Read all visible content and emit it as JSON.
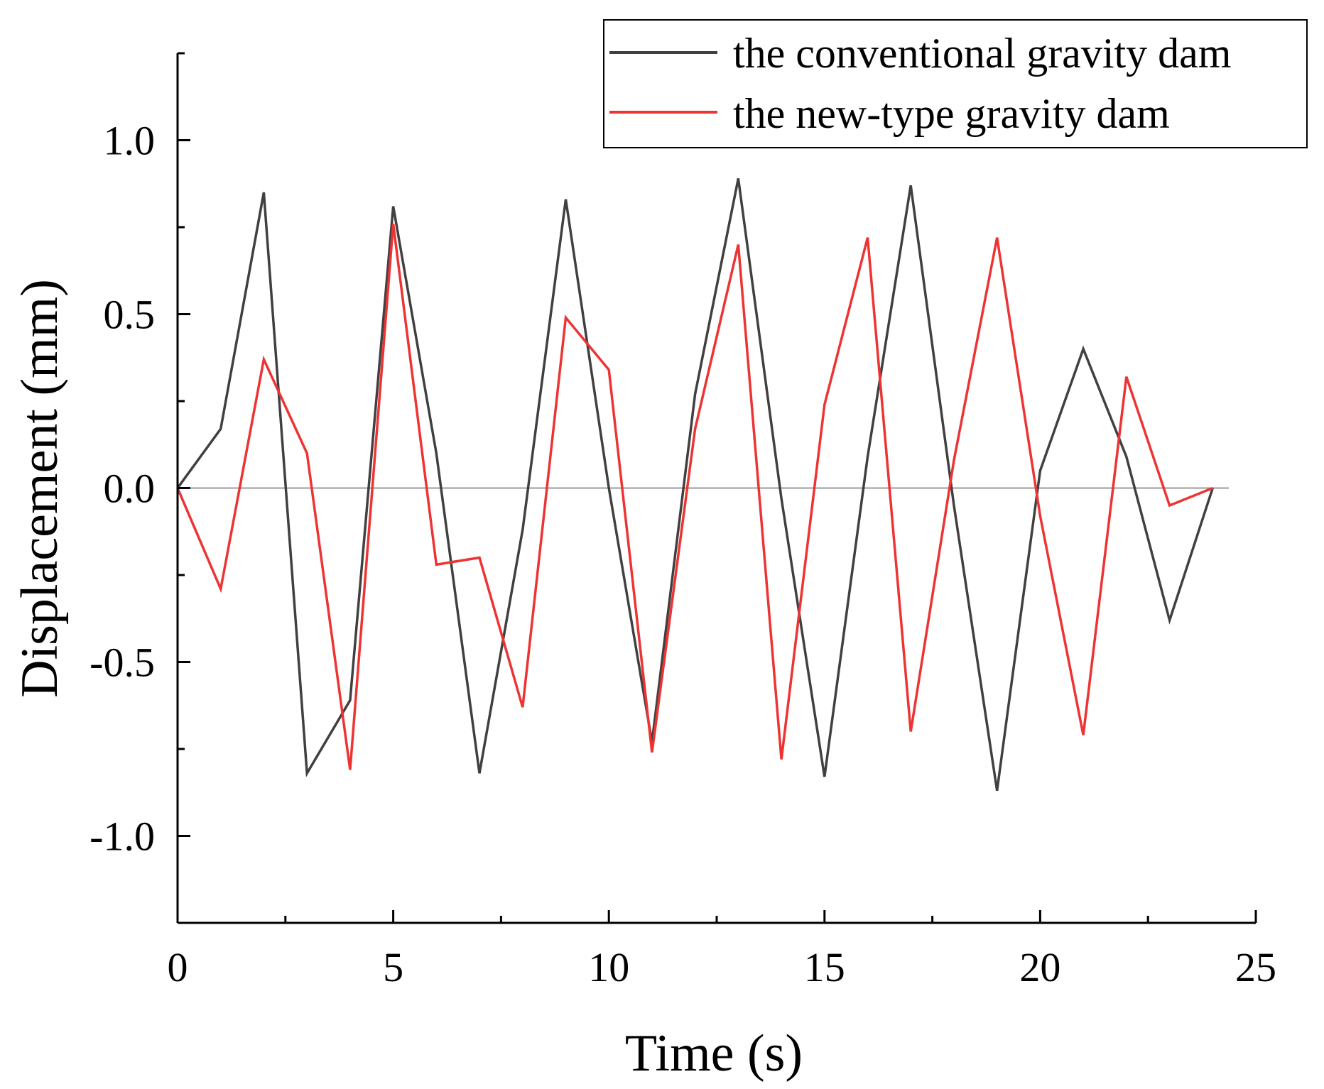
{
  "chart_data": {
    "type": "line",
    "title": "",
    "xlabel": "Time (s)",
    "ylabel": "Displacement (mm)",
    "xlim": [
      0,
      25
    ],
    "ylim": [
      -1.25,
      1.25
    ],
    "x_ticks": [
      0,
      5,
      10,
      15,
      20,
      25
    ],
    "x_tick_labels": [
      "0",
      "5",
      "10",
      "15",
      "20",
      "25"
    ],
    "y_ticks": [
      -1.0,
      -0.5,
      0.0,
      0.5,
      1.0
    ],
    "y_tick_labels": [
      "-1.0",
      "-0.5",
      "0.0",
      "0.5",
      "1.0"
    ],
    "grid": false,
    "zero_line": true,
    "legend_position": "top-right",
    "x": [
      0,
      1,
      2,
      3,
      4,
      5,
      6,
      7,
      8,
      9,
      10,
      11,
      12,
      13,
      14,
      15,
      16,
      17,
      18,
      19,
      20,
      21,
      22,
      23,
      24
    ],
    "series": [
      {
        "name": "the conventional gravity dam",
        "color": "#404040",
        "values": [
          0,
          0.17,
          0.85,
          -0.82,
          -0.61,
          0.81,
          0.1,
          -0.82,
          -0.12,
          0.83,
          0.0,
          -0.73,
          0.27,
          0.89,
          -0.03,
          -0.83,
          0.09,
          0.87,
          -0.05,
          -0.87,
          0.05,
          0.4,
          0.09,
          -0.38,
          0
        ]
      },
      {
        "name": "the new-type gravity dam",
        "color": "#ee3333",
        "values": [
          0,
          -0.29,
          0.37,
          0.1,
          -0.81,
          0.76,
          -0.22,
          -0.2,
          -0.63,
          0.49,
          0.34,
          -0.76,
          0.17,
          0.7,
          -0.78,
          0.24,
          0.72,
          -0.7,
          0.08,
          0.72,
          -0.08,
          -0.71,
          0.32,
          -0.05,
          0
        ]
      }
    ]
  }
}
